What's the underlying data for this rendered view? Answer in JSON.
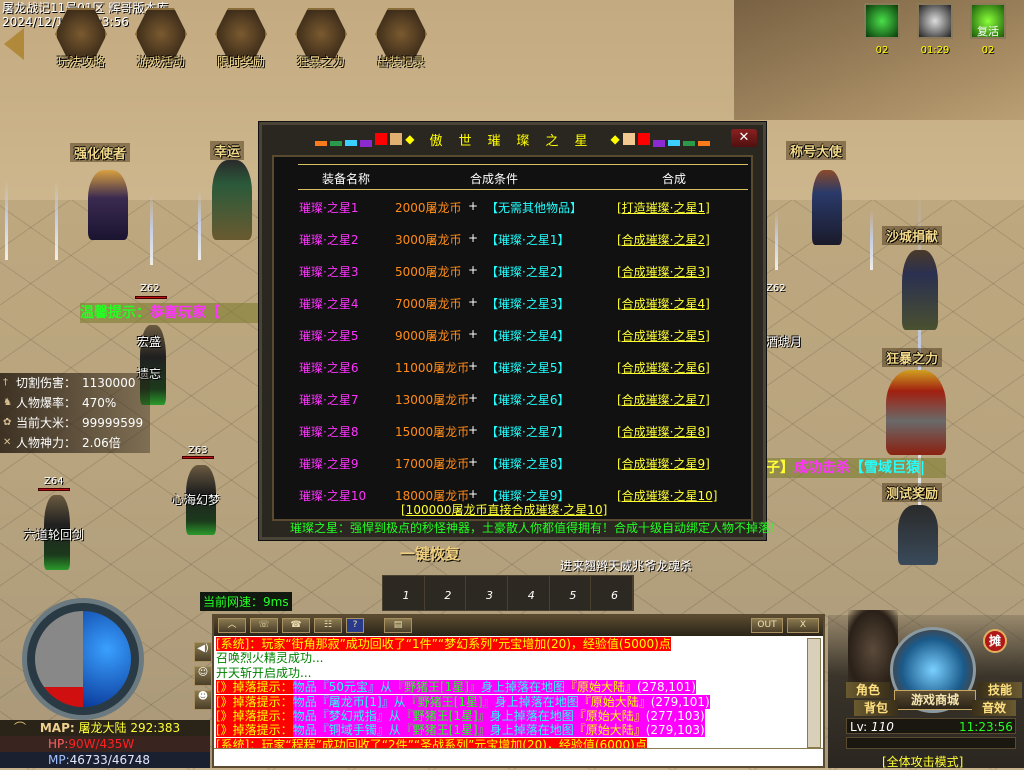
{
  "header": {
    "server_title": "屠龙战记11号01区 辉哥版本库",
    "datetime": "2024/12/11 11:23:56"
  },
  "top_menu": [
    {
      "label": "玩法攻略",
      "icon": "warrior-portrait-icon"
    },
    {
      "label": "游戏活动",
      "icon": "drum-icon"
    },
    {
      "label": "限时奖励",
      "icon": "treasure-chest-icon"
    },
    {
      "label": "狂暴之力",
      "icon": "general-portrait-icon"
    },
    {
      "label": "出装记录",
      "icon": "armor-icon"
    }
  ],
  "buffs": [
    {
      "icon": "green-shield-icon",
      "timer": "02",
      "label": ""
    },
    {
      "icon": "claw-icon",
      "timer": "01:29",
      "label": ""
    },
    {
      "icon": "revive-icon",
      "timer": "02",
      "label": "复活"
    }
  ],
  "npcs": [
    "强化使者",
    "幸运",
    "称号大使",
    "沙城捐献",
    "狂暴之力",
    "测试奖励"
  ],
  "players": [
    {
      "name": "宏盛",
      "level": "Z62"
    },
    {
      "name": "遗忘",
      "level": "Z63"
    },
    {
      "name": "六道轮回剑",
      "level": "Z64"
    },
    {
      "name": "心海幻梦",
      "level": "Z63"
    },
    {
      "name": "酒琥月",
      "level": "Z62"
    }
  ],
  "announcements": {
    "left": {
      "prefix": "温馨提示：",
      "text": "恭喜玩家【"
    },
    "right": {
      "text1": "子】",
      "text2": "成功击杀",
      "text3": "【雪域巨猿|"
    }
  },
  "stats": [
    {
      "label": "切割伤害：",
      "value": "1130000",
      "icon": "sword-icon"
    },
    {
      "label": "人物爆率：",
      "value": "470%",
      "icon": "horse-icon"
    },
    {
      "label": "当前大米：",
      "value": "99999599",
      "icon": "coin-icon"
    },
    {
      "label": "人物神力：",
      "value": "2.06倍",
      "icon": "crossed-swords-icon"
    }
  ],
  "dialog": {
    "title": "傲世璀璨之星",
    "headers": {
      "name": "装备名称",
      "condition": "合成条件",
      "action": "合成"
    },
    "rows": [
      {
        "name": "璀璨·之星1",
        "cost": "2000屠龙币",
        "plus": "+",
        "requires": "【无需其他物品】",
        "action": "[打造璀璨·之星1]"
      },
      {
        "name": "璀璨·之星2",
        "cost": "3000屠龙币",
        "plus": "+",
        "requires": "【璀璨·之星1】",
        "action": "[合成璀璨·之星2]"
      },
      {
        "name": "璀璨·之星3",
        "cost": "5000屠龙币",
        "plus": "+",
        "requires": "【璀璨·之星2】",
        "action": "[合成璀璨·之星3]"
      },
      {
        "name": "璀璨·之星4",
        "cost": "7000屠龙币",
        "plus": "+",
        "requires": "【璀璨·之星3】",
        "action": "[合成璀璨·之星4]"
      },
      {
        "name": "璀璨·之星5",
        "cost": "9000屠龙币",
        "plus": "+",
        "requires": "【璀璨·之星4】",
        "action": "[合成璀璨·之星5]"
      },
      {
        "name": "璀璨·之星6",
        "cost": "11000屠龙币",
        "plus": "+",
        "requires": "【璀璨·之星5】",
        "action": "[合成璀璨·之星6]"
      },
      {
        "name": "璀璨·之星7",
        "cost": "13000屠龙币",
        "plus": "+",
        "requires": "【璀璨·之星6】",
        "action": "[合成璀璨·之星7]"
      },
      {
        "name": "璀璨·之星8",
        "cost": "15000屠龙币",
        "plus": "+",
        "requires": "【璀璨·之星7】",
        "action": "[合成璀璨·之星8]"
      },
      {
        "name": "璀璨·之星9",
        "cost": "17000屠龙币",
        "plus": "+",
        "requires": "【璀璨·之星8】",
        "action": "[合成璀璨·之星9]"
      },
      {
        "name": "璀璨·之星10",
        "cost": "18000屠龙币",
        "plus": "+",
        "requires": "【璀璨·之星9】",
        "action": "[合成璀璨·之星10]"
      }
    ],
    "direct_link": "[100000屠龙币直接合成璀璨·之星10]",
    "footer": "璀璨之星：强悍到极点的秒怪神器，土豪散人你都值得拥有！合成十级自动绑定人物不掉落！",
    "close_icon": "close-icon",
    "colors": {
      "name": "#ff33ff",
      "cost": "#ff8c1a",
      "requires": "#22ffff",
      "action": "#ffff33",
      "footer": "#22ff22"
    }
  },
  "center": {
    "restore_label": "一键恢复",
    "floating_name": "进来翘辫天威兆爷龙魂杀",
    "slots": [
      "1",
      "2",
      "3",
      "4",
      "5",
      "6"
    ]
  },
  "net_speed": "当前网速：9ms",
  "chat": {
    "out_label": "OUT",
    "close_label": "X",
    "messages": [
      {
        "bg": "#ff0000",
        "segments": [
          {
            "text": "[系统]：玩家“街角那寂”成功回收了“1件”“梦幻系列”元宝增加(20)，经验值(5000)点",
            "color": "#ffff00"
          }
        ]
      },
      {
        "bg": "",
        "segments": [
          {
            "text": "召唤烈火精灵成功...",
            "color": "#008000"
          }
        ]
      },
      {
        "bg": "",
        "segments": [
          {
            "text": "开天斩开启成功...",
            "color": "#008000"
          }
        ]
      },
      {
        "bg": "#ff00ff",
        "segments": [
          {
            "text": "[》掉落提示：",
            "color": "#ffff00",
            "bg": "#ff0000"
          },
          {
            "text": "物品『50元宝』从",
            "color": "#22ffff"
          },
          {
            "text": "『野猪王[1星]』",
            "color": "#22ff22"
          },
          {
            "text": "身上掉落在地图",
            "color": "#22ffff"
          },
          {
            "text": "『原始大陆』",
            "color": "#ffff00"
          },
          {
            "text": "(278,101)",
            "color": "#ffffff"
          }
        ]
      },
      {
        "bg": "#ff00ff",
        "segments": [
          {
            "text": "[》掉落提示：",
            "color": "#ffff00",
            "bg": "#ff0000"
          },
          {
            "text": "物品『屠龙币[1]』从",
            "color": "#22ffff"
          },
          {
            "text": "『野猪王[1星]』",
            "color": "#22ff22"
          },
          {
            "text": "身上掉落在地图",
            "color": "#22ffff"
          },
          {
            "text": "『原始大陆』",
            "color": "#ffff00"
          },
          {
            "text": "(279,101)",
            "color": "#ffffff"
          }
        ]
      },
      {
        "bg": "#ff00ff",
        "segments": [
          {
            "text": "[》掉落提示：",
            "color": "#ffff00",
            "bg": "#ff0000"
          },
          {
            "text": "物品『梦幻戒指』从",
            "color": "#22ffff"
          },
          {
            "text": "『野猪王[1星]』",
            "color": "#22ff22"
          },
          {
            "text": "身上掉落在地图",
            "color": "#22ffff"
          },
          {
            "text": "『原始大陆』",
            "color": "#ffff00"
          },
          {
            "text": "(277,103)",
            "color": "#ffffff"
          }
        ]
      },
      {
        "bg": "#ff00ff",
        "segments": [
          {
            "text": "[》掉落提示：",
            "color": "#ffff00",
            "bg": "#ff0000"
          },
          {
            "text": "物品『铜域手镯』从",
            "color": "#22ffff"
          },
          {
            "text": "『野猪王[1星]』",
            "color": "#22ff22"
          },
          {
            "text": "身上掉落在地图",
            "color": "#22ffff"
          },
          {
            "text": "『原始大陆』",
            "color": "#ffff00"
          },
          {
            "text": "(279,103)",
            "color": "#ffffff"
          }
        ]
      },
      {
        "bg": "#ff0000",
        "segments": [
          {
            "text": "[系统]：玩家“程程”成功回收了“2件”“圣战系列”元宝增加(20)，经验值(6000)点",
            "color": "#ffff00"
          }
        ]
      }
    ]
  },
  "status": {
    "map_label": "MAP:",
    "map_name": "屠龙大陆",
    "coords": "292:383",
    "hp_label": "HP:",
    "hp": "90W/435W",
    "mp_label": "MP:",
    "mp": "46733/46748",
    "hp_fraction": 0.21,
    "mp_fraction": 0.9998
  },
  "right_panel": {
    "shop": "游戏商城",
    "character": "角色",
    "bag": "背包",
    "skills": "技能",
    "sound": "音效",
    "stall": "摊",
    "level_label": "Lv:",
    "level": "110",
    "clock": "11:23:56",
    "attack_mode": "[全体攻击模式]"
  }
}
